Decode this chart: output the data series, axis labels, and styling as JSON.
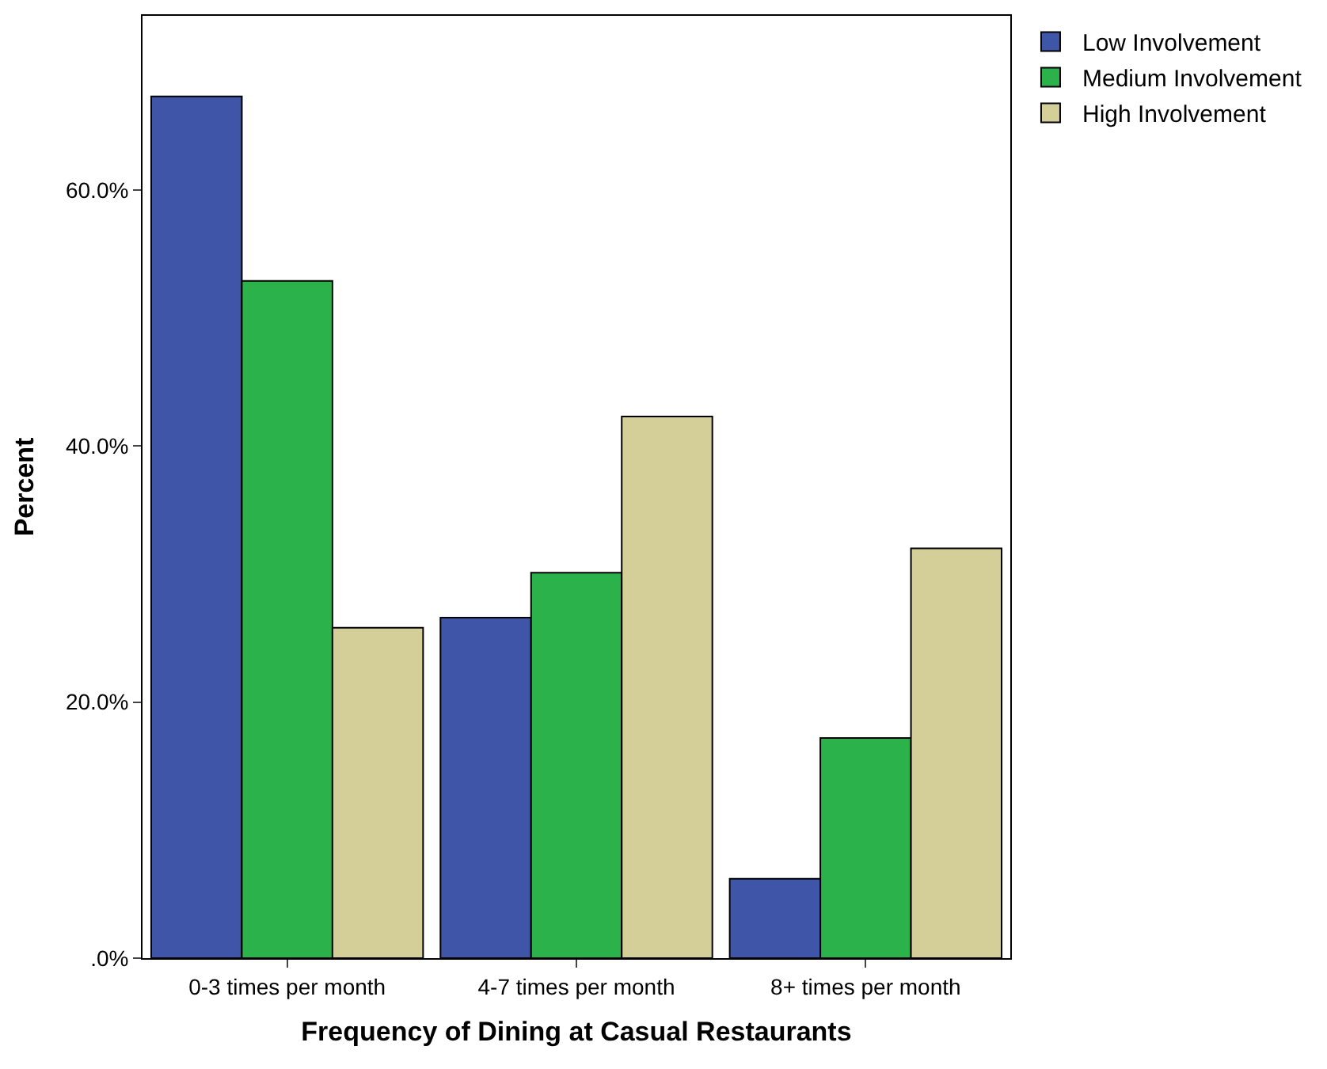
{
  "chart_data": {
    "type": "bar",
    "xlabel": "Frequency of Dining at Casual Restaurants",
    "ylabel": "Percent",
    "categories": [
      "0-3 times per month",
      "4-7 times per month",
      "8+ times per month"
    ],
    "series": [
      {
        "name": "Low Involvement",
        "color": "#3e55a8",
        "values": [
          67.3,
          26.6,
          6.2
        ]
      },
      {
        "name": "Medium Involvement",
        "color": "#2bb24a",
        "values": [
          52.9,
          30.1,
          17.2
        ]
      },
      {
        "name": "High Involvement",
        "color": "#d4cf98",
        "values": [
          25.8,
          42.3,
          32.0
        ]
      }
    ],
    "ylim": [
      0,
      73.6
    ],
    "yticks": [
      {
        "value": 0,
        "label": ".0%"
      },
      {
        "value": 20,
        "label": "20.0%"
      },
      {
        "value": 40,
        "label": "40.0%"
      },
      {
        "value": 60,
        "label": "60.0%"
      }
    ],
    "legend": "top right"
  }
}
